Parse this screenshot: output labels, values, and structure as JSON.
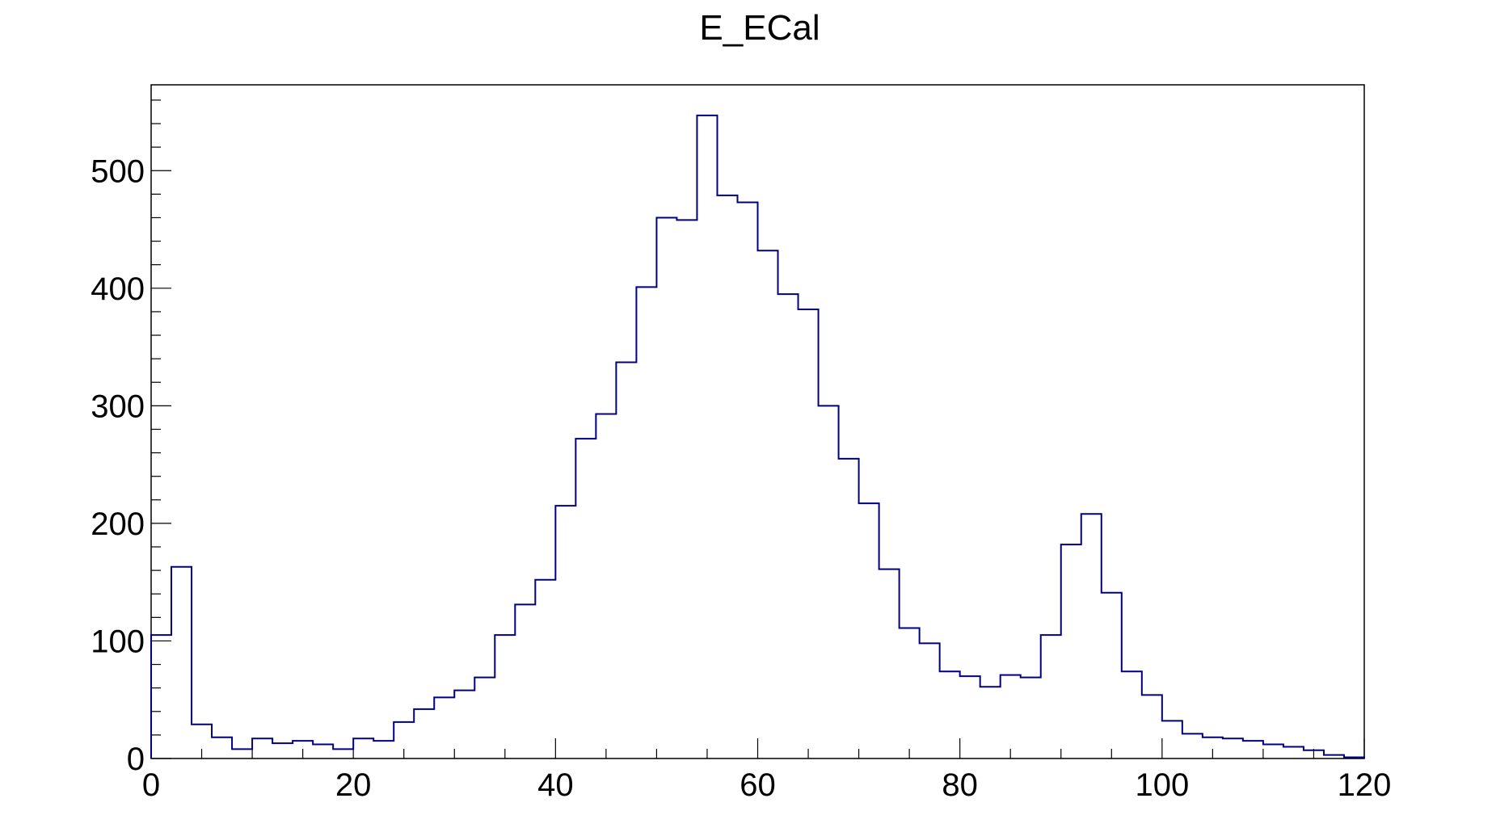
{
  "chart_data": {
    "type": "bar",
    "title": "E_ECal",
    "xlabel": "",
    "ylabel": "",
    "xlim": [
      0,
      120
    ],
    "ylim": [
      0,
      573
    ],
    "bin_width": 2,
    "x_ticks": [
      0,
      20,
      40,
      60,
      80,
      100,
      120
    ],
    "x_tick_labels": [
      "0",
      "20",
      "40",
      "60",
      "80",
      "100",
      "120"
    ],
    "y_ticks": [
      0,
      100,
      200,
      300,
      400,
      500
    ],
    "y_tick_labels": [
      "0",
      "100",
      "200",
      "300",
      "400",
      "500"
    ],
    "grid": false,
    "series": [
      {
        "color": "#000080",
        "bin_edges_start": 0,
        "values": [
          105,
          163,
          29,
          18,
          8,
          17,
          13,
          15,
          12,
          8,
          17,
          15,
          31,
          42,
          52,
          58,
          69,
          105,
          131,
          152,
          215,
          272,
          293,
          337,
          401,
          460,
          458,
          547,
          479,
          473,
          432,
          395,
          382,
          300,
          255,
          217,
          161,
          111,
          98,
          74,
          70,
          61,
          71,
          69,
          105,
          182,
          208,
          141,
          74,
          54,
          32,
          21,
          18,
          17,
          15,
          12,
          10,
          7,
          3,
          1
        ]
      }
    ]
  }
}
